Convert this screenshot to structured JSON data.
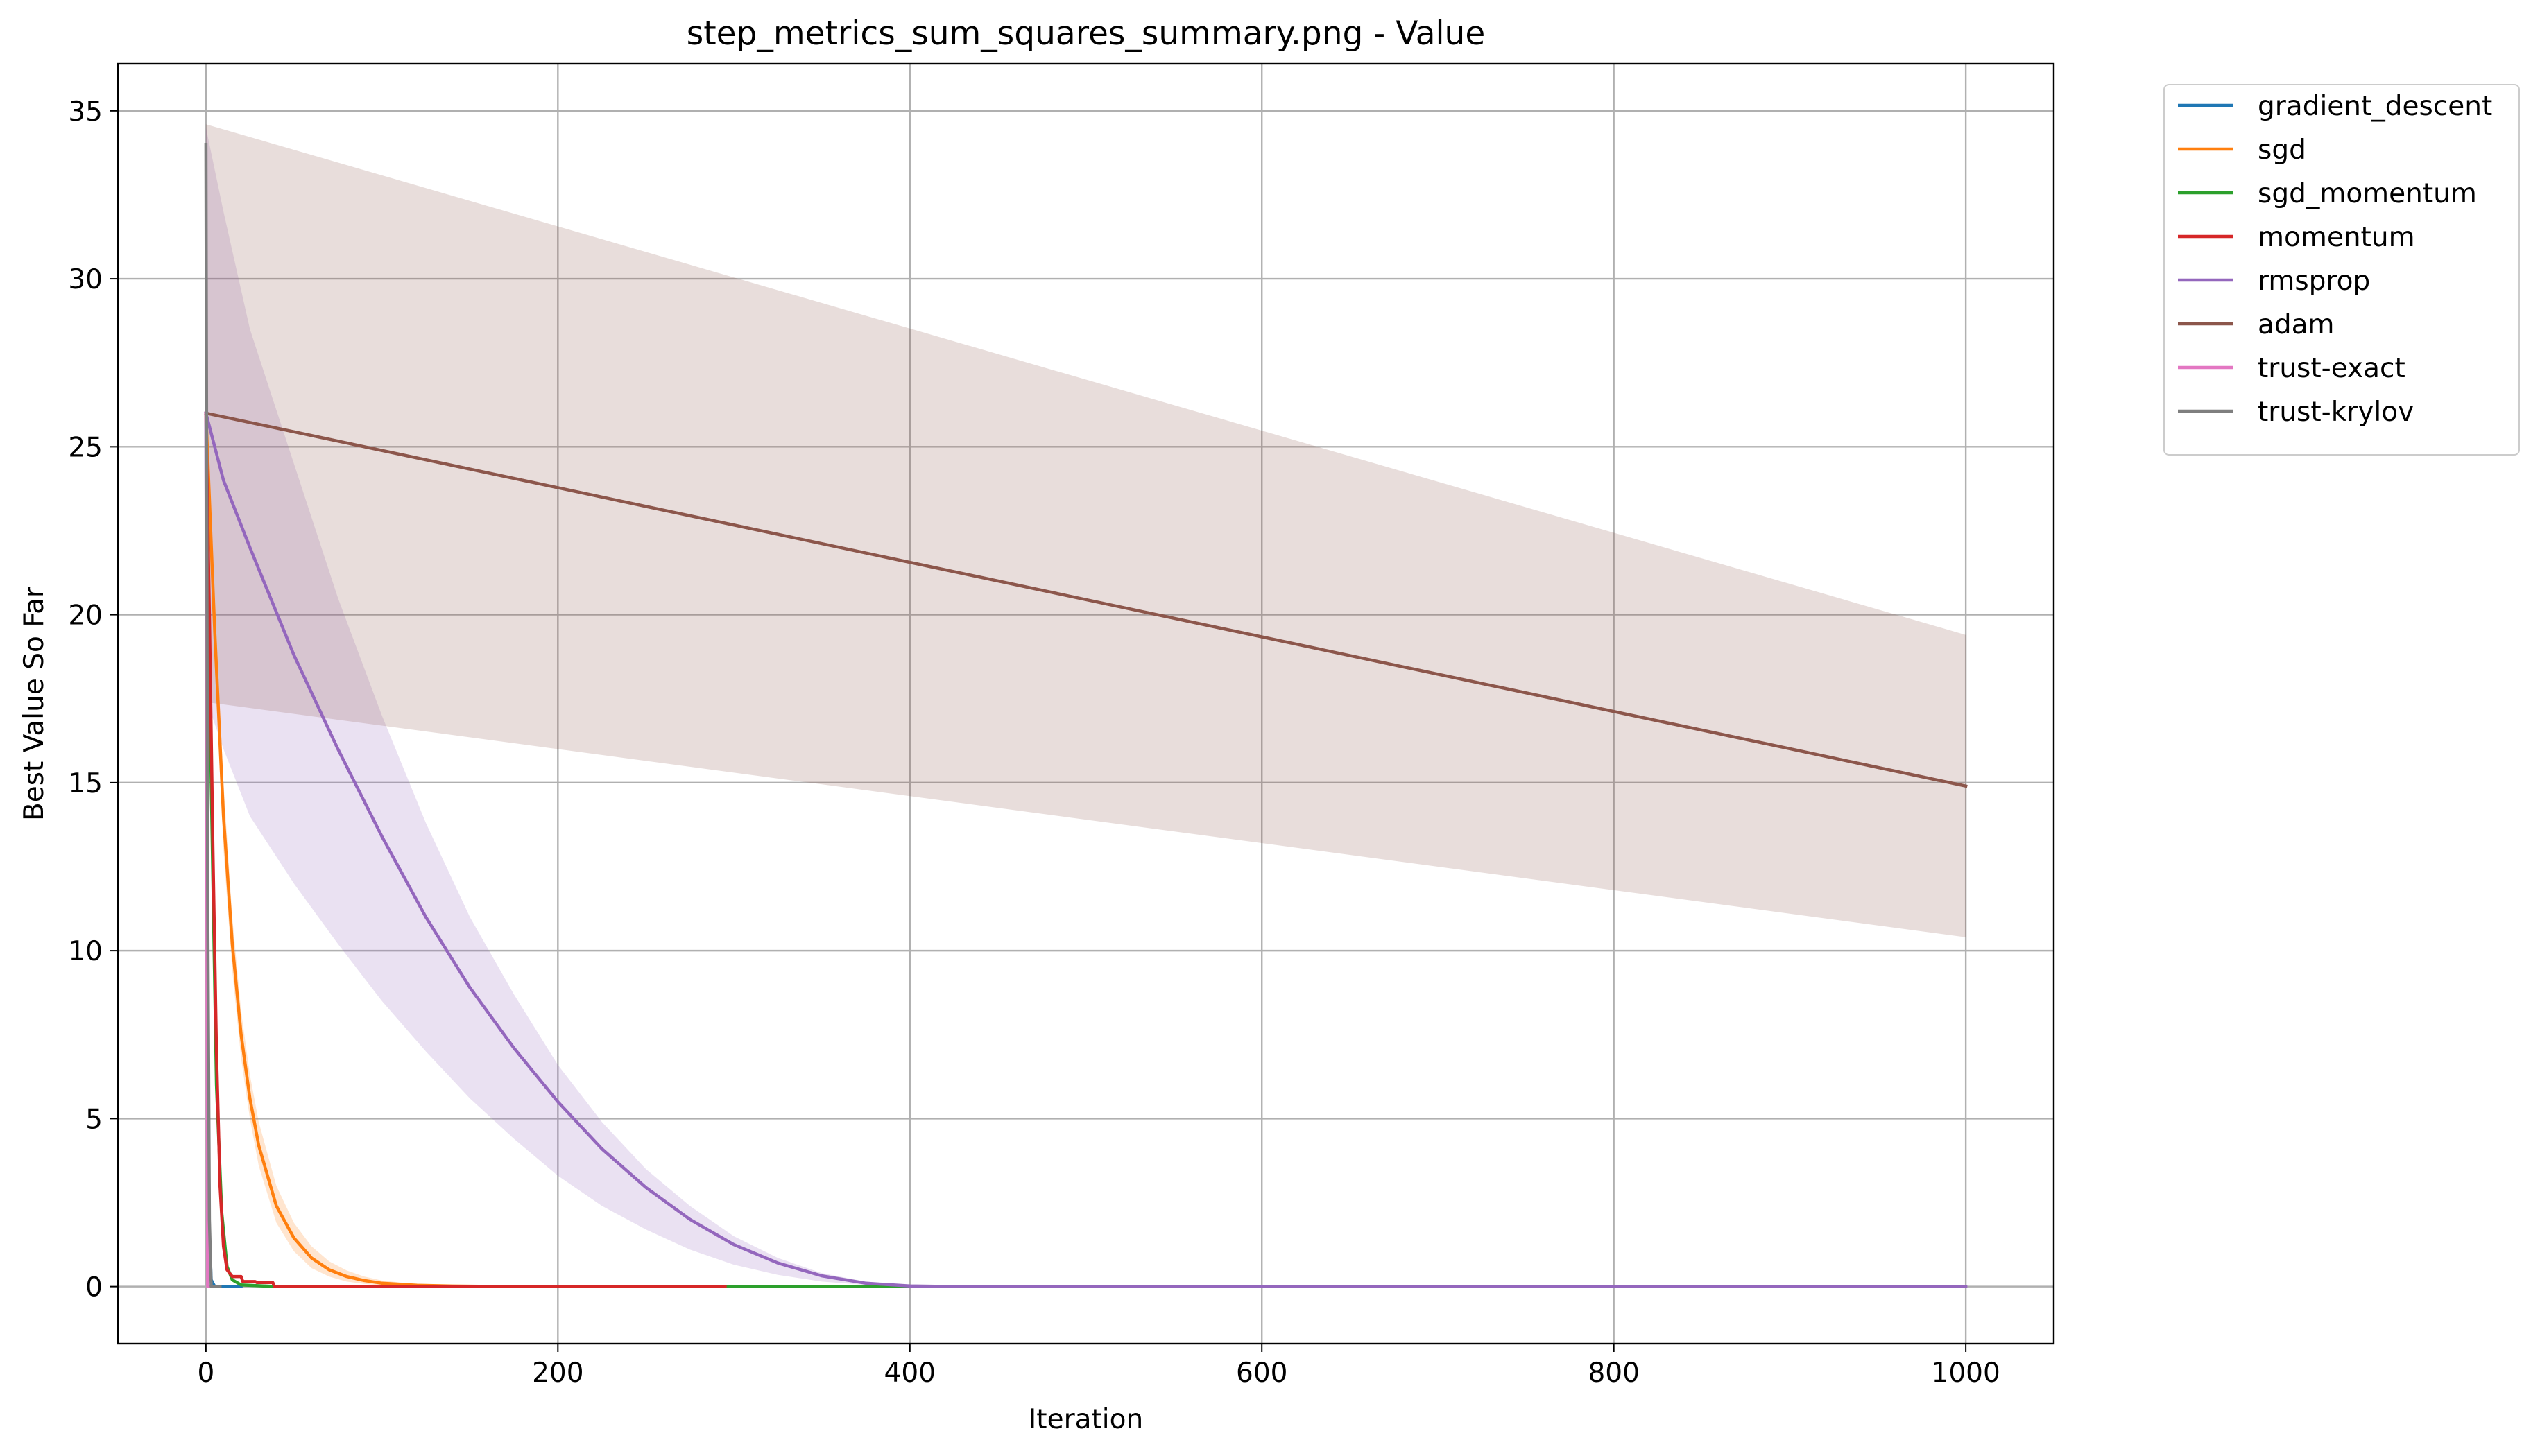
{
  "chart_data": {
    "type": "line",
    "title": "step_metrics_sum_squares_summary.png - Value",
    "xlabel": "Iteration",
    "ylabel": "Best Value So Far",
    "xlim": [
      -50,
      1050
    ],
    "ylim": [
      -1.7,
      36.4
    ],
    "xticks": [
      0,
      200,
      400,
      600,
      800,
      1000
    ],
    "yticks": [
      0,
      5,
      10,
      15,
      20,
      25,
      30,
      35
    ],
    "grid": true,
    "legend_position": "outside upper right",
    "series": [
      {
        "name": "gradient_descent",
        "color": "#1f77b4",
        "x": [
          0,
          1,
          2,
          3,
          5,
          10,
          20
        ],
        "values": [
          26.0,
          8.0,
          1.5,
          0.2,
          0.0,
          0.0,
          0.0
        ]
      },
      {
        "name": "sgd",
        "color": "#ff7f0e",
        "x": [
          0,
          5,
          10,
          15,
          20,
          25,
          30,
          40,
          50,
          60,
          70,
          80,
          90,
          100,
          120,
          140,
          160,
          200,
          250,
          300
        ],
        "values": [
          26.0,
          19.5,
          14.0,
          10.2,
          7.5,
          5.6,
          4.2,
          2.4,
          1.45,
          0.85,
          0.5,
          0.3,
          0.18,
          0.1,
          0.04,
          0.015,
          0.005,
          0.0,
          0.0,
          0.0
        ],
        "band_upper": [
          26.0,
          20.5,
          15.0,
          11.0,
          8.2,
          6.3,
          4.9,
          3.0,
          1.9,
          1.2,
          0.75,
          0.48,
          0.3,
          0.18,
          0.07,
          0.03,
          0.01,
          0.0,
          0.0,
          0.0
        ],
        "band_lower": [
          26.0,
          18.5,
          13.0,
          9.4,
          6.8,
          5.0,
          3.6,
          1.9,
          1.05,
          0.55,
          0.3,
          0.15,
          0.08,
          0.04,
          0.01,
          0.0,
          0.0,
          0.0,
          0.0,
          0.0
        ]
      },
      {
        "name": "sgd_momentum",
        "color": "#2ca02c",
        "x": [
          0,
          3,
          6,
          9,
          12,
          15,
          20,
          40,
          100,
          200,
          300,
          400,
          500
        ],
        "values": [
          26.0,
          15.0,
          6.0,
          2.2,
          0.6,
          0.2,
          0.05,
          0.0,
          0.0,
          0.0,
          0.0,
          0.0,
          0.0
        ]
      },
      {
        "name": "momentum",
        "color": "#d62728",
        "x": [
          0,
          2,
          4,
          6,
          8,
          10,
          12,
          15,
          18,
          20,
          21,
          25,
          28,
          29,
          35,
          38,
          39,
          60,
          100,
          200,
          295
        ],
        "values": [
          26.0,
          20.0,
          13.0,
          7.0,
          3.0,
          1.2,
          0.5,
          0.3,
          0.3,
          0.3,
          0.15,
          0.15,
          0.15,
          0.12,
          0.12,
          0.12,
          0.0,
          0.0,
          0.0,
          0.0,
          0.0
        ]
      },
      {
        "name": "rmsprop",
        "color": "#9467bd",
        "x": [
          0,
          10,
          25,
          50,
          75,
          100,
          125,
          150,
          175,
          200,
          225,
          250,
          275,
          300,
          325,
          350,
          375,
          400,
          425,
          450,
          500,
          600,
          700,
          800,
          900,
          1000
        ],
        "values": [
          26.0,
          24.0,
          22.0,
          18.8,
          16.0,
          13.4,
          11.0,
          8.9,
          7.1,
          5.5,
          4.1,
          2.95,
          2.0,
          1.25,
          0.7,
          0.32,
          0.1,
          0.02,
          0.0,
          0.0,
          0.0,
          0.0,
          0.0,
          0.0,
          0.0,
          0.0
        ],
        "band_upper": [
          34.5,
          32.0,
          28.5,
          24.5,
          20.5,
          17.0,
          13.8,
          11.0,
          8.7,
          6.6,
          4.9,
          3.5,
          2.4,
          1.5,
          0.85,
          0.4,
          0.15,
          0.03,
          0.0,
          0.0,
          0.0,
          0.0,
          0.0,
          0.0,
          0.0,
          0.0
        ],
        "band_lower": [
          17.5,
          16.0,
          14.0,
          12.0,
          10.2,
          8.5,
          7.0,
          5.6,
          4.4,
          3.3,
          2.4,
          1.7,
          1.1,
          0.65,
          0.35,
          0.15,
          0.05,
          0.0,
          0.0,
          0.0,
          0.0,
          0.0,
          0.0,
          0.0,
          0.0,
          0.0
        ]
      },
      {
        "name": "adam",
        "color": "#8c564b",
        "x": [
          0,
          1000
        ],
        "values": [
          26.0,
          14.9
        ],
        "band_upper": [
          34.6,
          19.4
        ],
        "band_lower": [
          17.4,
          10.4
        ]
      },
      {
        "name": "trust-exact",
        "color": "#e377c2",
        "x": [
          0,
          1,
          2,
          3,
          5
        ],
        "values": [
          26.0,
          0.0,
          0.0,
          0.0,
          0.0
        ]
      },
      {
        "name": "trust-krylov",
        "color": "#7f7f7f",
        "x": [
          0,
          1,
          2,
          3,
          4,
          5,
          8
        ],
        "values": [
          34.0,
          12.0,
          2.0,
          0.0,
          0.0,
          0.0,
          0.0
        ]
      }
    ]
  }
}
